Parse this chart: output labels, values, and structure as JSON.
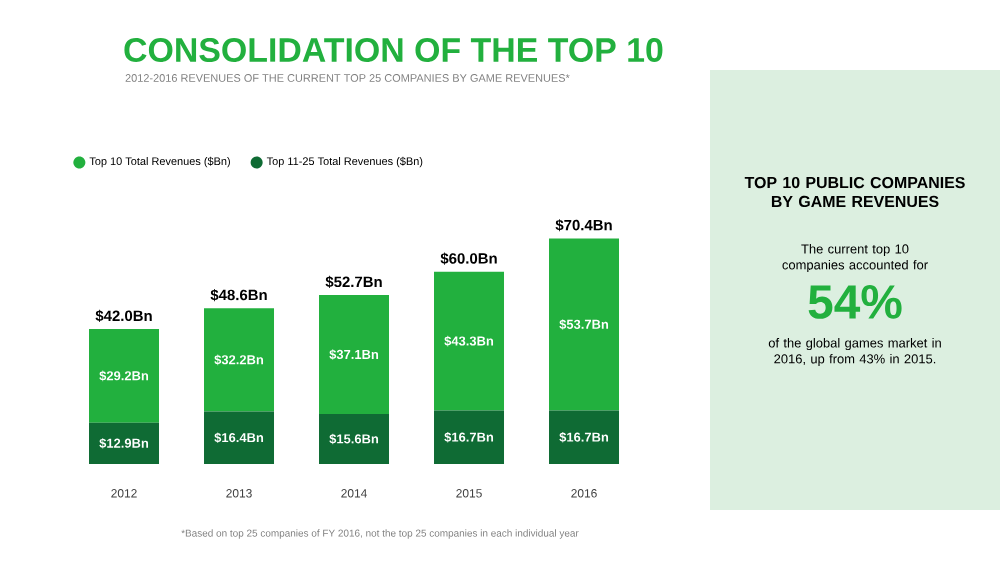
{
  "chart_data": [
    {
      "type": "bar",
      "title": "CONSOLIDATION OF THE TOP 10",
      "subtitle": "2012-2016 REVENUES OF THE CURRENT TOP 25 COMPANIES BY GAME REVENUES*",
      "categories": [
        "2012",
        "2013",
        "2014",
        "2015",
        "2016"
      ],
      "stacked": true,
      "legend": "top left",
      "series": [
        {
          "name": "Top 11-25 Total Revenues ($Bn)",
          "color": "#0f6b34",
          "values": [
            12.9,
            16.4,
            15.6,
            16.7,
            16.7
          ],
          "value_labels": [
            "$12.9Bn",
            "$16.4Bn",
            "$15.6Bn",
            "$16.7Bn",
            "$16.7Bn"
          ]
        },
        {
          "name": "Top 10 Total Revenues ($Bn)",
          "color": "#22b03e",
          "values": [
            29.2,
            32.2,
            37.1,
            43.3,
            53.7
          ],
          "value_labels": [
            "$29.2Bn",
            "$32.2Bn",
            "$37.1Bn",
            "$43.3Bn",
            "$53.7Bn"
          ]
        }
      ],
      "totals": [
        "$42.0Bn",
        "$48.6Bn",
        "$52.7Bn",
        "$60.0Bn",
        "$70.4Bn"
      ],
      "annotations": [
        "*Based on top 25 companies of FY 2016, not the top 25 companies in each individual year"
      ]
    },
    {
      "type": "other",
      "title": "TOP 10 PUBLIC COMPANIES BY GAME REVENUES",
      "annotations": [
        "The current top 10 companies accounted for",
        "54%",
        "of the global games market in 2016, up from 43% in 2015."
      ]
    }
  ]
}
